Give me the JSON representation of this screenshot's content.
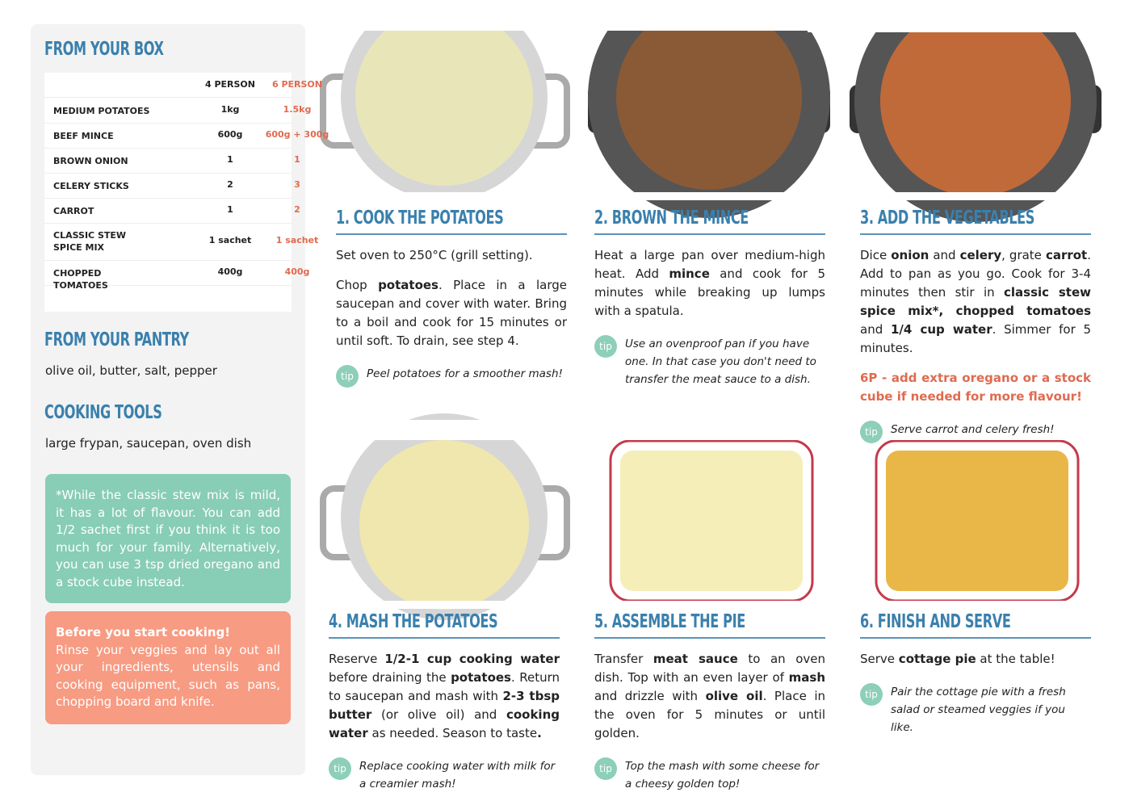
{
  "sidebar": {
    "box_title": "from your box",
    "table": {
      "header": [
        "4 PERSON",
        "6 PERSON"
      ],
      "rows": [
        [
          "MEDIUM POTATOES",
          "1kg",
          "1.5kg"
        ],
        [
          "BEEF MINCE",
          "600g",
          "600g + 300g"
        ],
        [
          "BROWN ONION",
          "1",
          "1"
        ],
        [
          "CELERY STICKS",
          "2",
          "3"
        ],
        [
          "CARROT",
          "1",
          "2"
        ],
        [
          "CLASSIC STEW SPICE MIX",
          "1 sachet",
          "1 sachet"
        ],
        [
          "CHOPPED TOMATOES",
          "400g",
          "400g"
        ]
      ]
    },
    "pantry_title": "from your pantry",
    "pantry": "olive oil, butter, salt, pepper",
    "tools_title": "cooking tools",
    "tools": "large frypan, saucepan, oven dish",
    "note": "*While the classic stew mix is mild, it has a lot of flavour. You can add 1/2 sachet first if you think it is too much for your family. Alternatively, you can use 3 tsp dried oregano and a stock cube instead.",
    "before_title": "Before you start cooking!",
    "before": "Rinse your veggies and lay out all your ingredients, utensils and cooking equipment, such as pans, chopping board and knife."
  },
  "tip_label": "tip",
  "steps": [
    {
      "title": "1. cook the potatoes",
      "paragraphs": [
        [
          {
            "t": "Set oven to 250°C (grill setting)."
          }
        ],
        [
          {
            "t": "Chop "
          },
          {
            "b": "potatoes"
          },
          {
            "t": ". Place in a large saucepan and cover with water. Bring to a boil and cook for 15 minutes or until soft. To drain, see step 4."
          }
        ]
      ],
      "tip": "Peel potatoes for a smoother mash!"
    },
    {
      "title": "2. brown the mince",
      "paragraphs": [
        [
          {
            "t": "Heat a large pan over medium-high heat. Add "
          },
          {
            "b": "mince"
          },
          {
            "t": " and cook for 5 minutes while breaking up lumps with a spatula."
          }
        ]
      ],
      "tip": "Use an ovenproof pan if you have one. In that case you don't need to transfer the meat sauce to a dish."
    },
    {
      "title": "3. add the vegetables",
      "paragraphs": [
        [
          {
            "t": "Dice "
          },
          {
            "b": "onion"
          },
          {
            "t": " and "
          },
          {
            "b": "celery"
          },
          {
            "t": ", grate "
          },
          {
            "b": "carrot"
          },
          {
            "t": ". Add to pan as you go. Cook for 3-4 minutes then stir in "
          },
          {
            "b": "classic stew spice mix*, chopped tomatoes"
          },
          {
            "t": " and "
          },
          {
            "b": "1/4 cup water"
          },
          {
            "t": ". Simmer for 5 minutes."
          }
        ],
        [
          {
            "r": "6P - add extra oregano or a stock cube if needed for more flavour!"
          }
        ]
      ],
      "tip": "Serve carrot and celery fresh!"
    },
    {
      "title": "4. mash the potatoes",
      "paragraphs": [
        [
          {
            "t": "Reserve "
          },
          {
            "b": "1/2-1 cup cooking water"
          },
          {
            "t": " before draining the "
          },
          {
            "b": "potatoes"
          },
          {
            "t": ". Return to saucepan and mash with "
          },
          {
            "b": "2-3 tbsp butter"
          },
          {
            "t": " (or olive oil) and "
          },
          {
            "b": "cooking water"
          },
          {
            "t": " as needed. Season to taste"
          },
          {
            "b": "."
          }
        ]
      ],
      "tip": "Replace cooking water with milk for a creamier mash!"
    },
    {
      "title": "5. assemble the pie",
      "paragraphs": [
        [
          {
            "t": "Transfer "
          },
          {
            "b": "meat sauce"
          },
          {
            "t": " to an oven dish. Top with an even layer of "
          },
          {
            "b": "mash"
          },
          {
            "t": " and drizzle with "
          },
          {
            "b": "olive oil"
          },
          {
            "t": ". Place in the oven for 5 minutes or until golden."
          }
        ]
      ],
      "tip": "Top the mash with some cheese for a cheesy golden top!"
    },
    {
      "title": "6. finish and serve",
      "paragraphs": [
        [
          {
            "t": "Serve "
          },
          {
            "b": "cottage pie"
          },
          {
            "t": " at the table!"
          }
        ]
      ],
      "tip": "Pair the cottage pie with a fresh salad or steamed veggies if you like."
    }
  ]
}
